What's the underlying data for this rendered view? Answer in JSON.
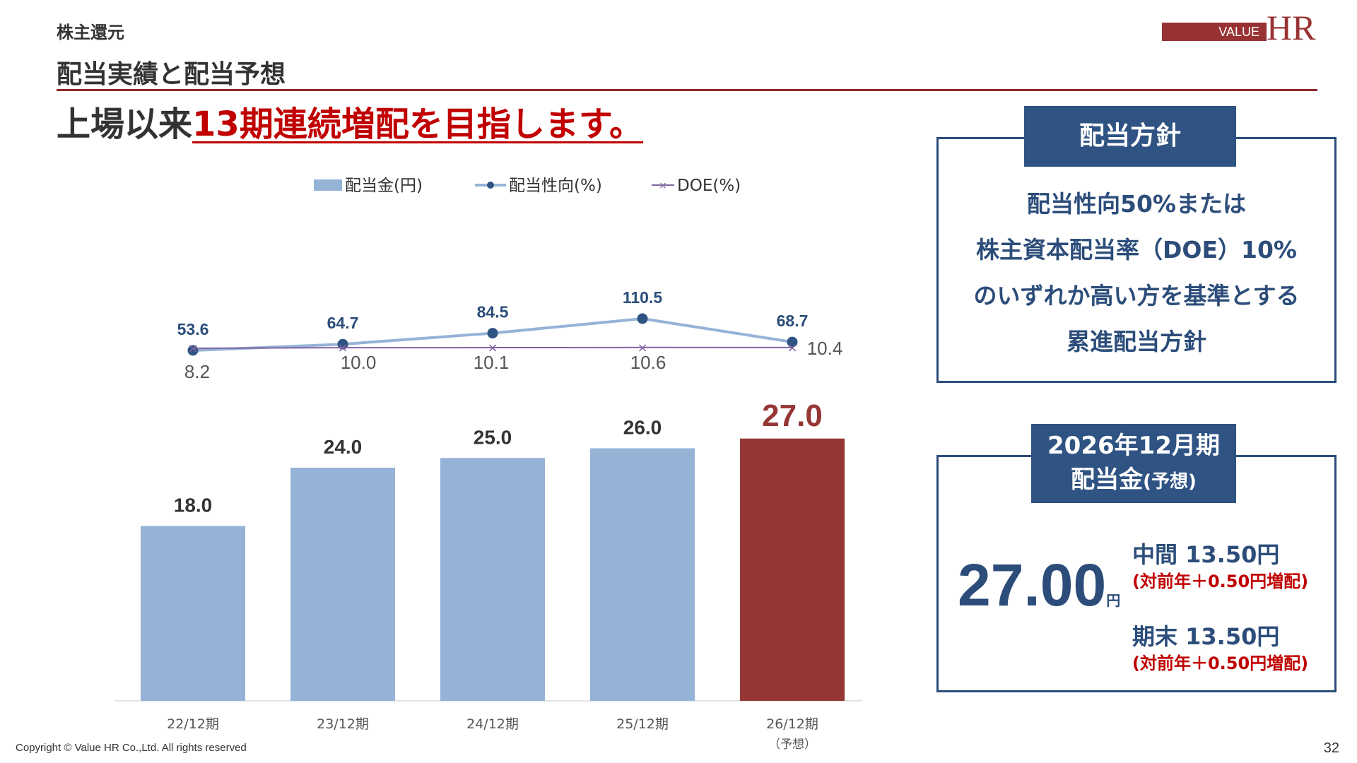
{
  "header": {
    "section": "株主還元",
    "title": "配当実績と配当予想",
    "logo_value": "VALUE",
    "logo_hr": "HR"
  },
  "headline": {
    "prefix": "上場以来",
    "highlight": "13期連続増配を目指します。"
  },
  "chart_data": {
    "type": "bar",
    "categories": [
      "22/12期",
      "23/12期",
      "24/12期",
      "25/12期",
      "26/12期"
    ],
    "category_notes": [
      "",
      "",
      "",
      "",
      "（予想）"
    ],
    "series": [
      {
        "name": "配当金(円)",
        "type": "bar",
        "values": [
          18.0,
          24.0,
          25.0,
          26.0,
          27.0
        ],
        "color": "#95b3d7",
        "highlight_color": "#953735",
        "highlight_index": 4
      },
      {
        "name": "配当性向(%)",
        "type": "line",
        "values": [
          53.6,
          64.7,
          84.5,
          110.5,
          68.7
        ],
        "color": "#95b3d7",
        "marker_color": "#2f5383"
      },
      {
        "name": "DOE(%)",
        "type": "line",
        "values": [
          8.2,
          10.0,
          10.1,
          10.6,
          10.4
        ],
        "color": "#8064a2"
      }
    ],
    "value_labels": {
      "dividend": [
        "18.0",
        "24.0",
        "25.0",
        "26.0",
        "27.0"
      ],
      "payout": [
        "53.6",
        "64.7",
        "84.5",
        "110.5",
        "68.7"
      ],
      "doe": [
        "8.2",
        "10.0",
        "10.1",
        "10.6",
        "10.4"
      ]
    },
    "legend": [
      "配当金(円)",
      "配当性向(%)",
      "DOE(%)"
    ],
    "legend_position": "top",
    "grid": false
  },
  "policy": {
    "title": "配当方針",
    "lines": [
      "配当性向50%または",
      "株主資本配当率（DOE）10%",
      "のいずれか高い方を基準とする",
      "累進配当方針"
    ]
  },
  "forecast": {
    "title_line1": "2026年12月期",
    "title_line2_main": "配当金",
    "title_line2_note": "(予想)",
    "total": "27.00",
    "total_unit": "円",
    "interim_label": "中間 13.50円",
    "interim_note": "(対前年＋0.50円増配)",
    "final_label": "期末 13.50円",
    "final_note": "(対前年＋0.50円増配)"
  },
  "footer": {
    "copyright": "Copyright © Value HR Co.,Ltd. All rights reserved",
    "page": "32"
  }
}
